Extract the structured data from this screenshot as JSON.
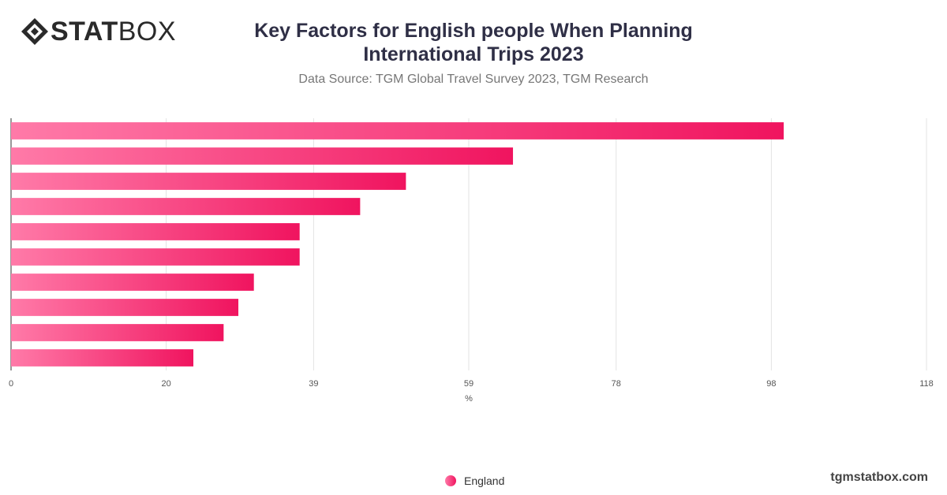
{
  "brand": {
    "logo_bold": "STAT",
    "logo_light": "BOX",
    "website": "tgmstatbox.com"
  },
  "header": {
    "title": "Key Factors for English people When Planning International Trips 2023",
    "subtitle": "Data Source: TGM Global Travel Survey 2023, TGM Research"
  },
  "colors": {
    "bar_start": "#ff7aa8",
    "bar_end": "#f0145f",
    "grid": "#e3e3e3",
    "axis": "#555555"
  },
  "chart_data": {
    "type": "bar",
    "orientation": "horizontal",
    "title": "Key Factors for English people When Planning International Trips 2023",
    "xlabel": "%",
    "xlim": [
      0,
      118
    ],
    "xticks": [
      "0",
      "20",
      "39",
      "59",
      "78",
      "98",
      "118"
    ],
    "grid": true,
    "legend_position": "bottom-center",
    "series": [
      {
        "name": "England",
        "values": [
          99.6,
          64.7,
          50.9,
          45.0,
          37.2,
          37.2,
          31.3,
          29.3,
          27.4,
          23.5
        ]
      }
    ]
  }
}
